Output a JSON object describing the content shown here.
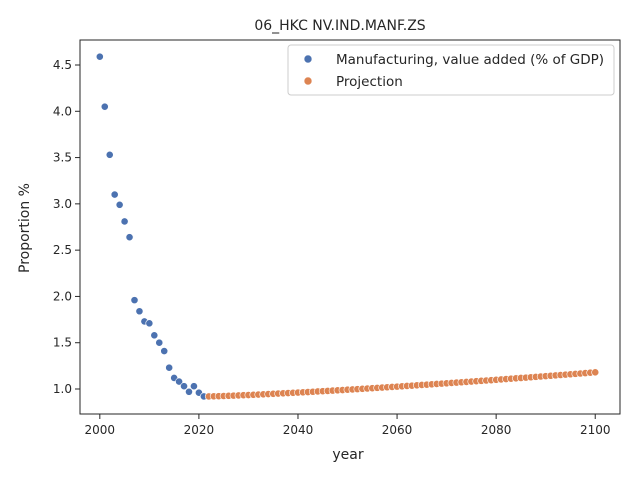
{
  "chart_data": {
    "type": "scatter",
    "title": "06_HKC NV.IND.MANF.ZS",
    "xlabel": "year",
    "ylabel": "Proportion %",
    "xlim": [
      1996,
      2105
    ],
    "ylim": [
      0.73,
      4.77
    ],
    "xticks": [
      2000,
      2020,
      2040,
      2060,
      2080,
      2100
    ],
    "yticks": [
      1.0,
      1.5,
      2.0,
      2.5,
      3.0,
      3.5,
      4.0,
      4.5
    ],
    "grid": false,
    "legend_position": "top-right",
    "series": [
      {
        "name": "Manufacturing, value added (% of GDP)",
        "color": "#4c72b0",
        "x": [
          2000,
          2001,
          2002,
          2003,
          2004,
          2005,
          2006,
          2007,
          2008,
          2009,
          2010,
          2011,
          2012,
          2013,
          2014,
          2015,
          2016,
          2017,
          2018,
          2019,
          2020,
          2021
        ],
        "y": [
          4.59,
          4.05,
          3.53,
          3.1,
          2.99,
          2.81,
          2.64,
          1.96,
          1.84,
          1.73,
          1.71,
          1.58,
          1.5,
          1.41,
          1.23,
          1.12,
          1.08,
          1.03,
          0.97,
          1.03,
          0.96,
          0.92
        ]
      },
      {
        "name": "Projection",
        "color": "#dd8452",
        "x_start": 2022,
        "x_end": 2100,
        "y_start": 0.92,
        "y_end": 1.18,
        "curve_power": 1.25
      }
    ]
  }
}
